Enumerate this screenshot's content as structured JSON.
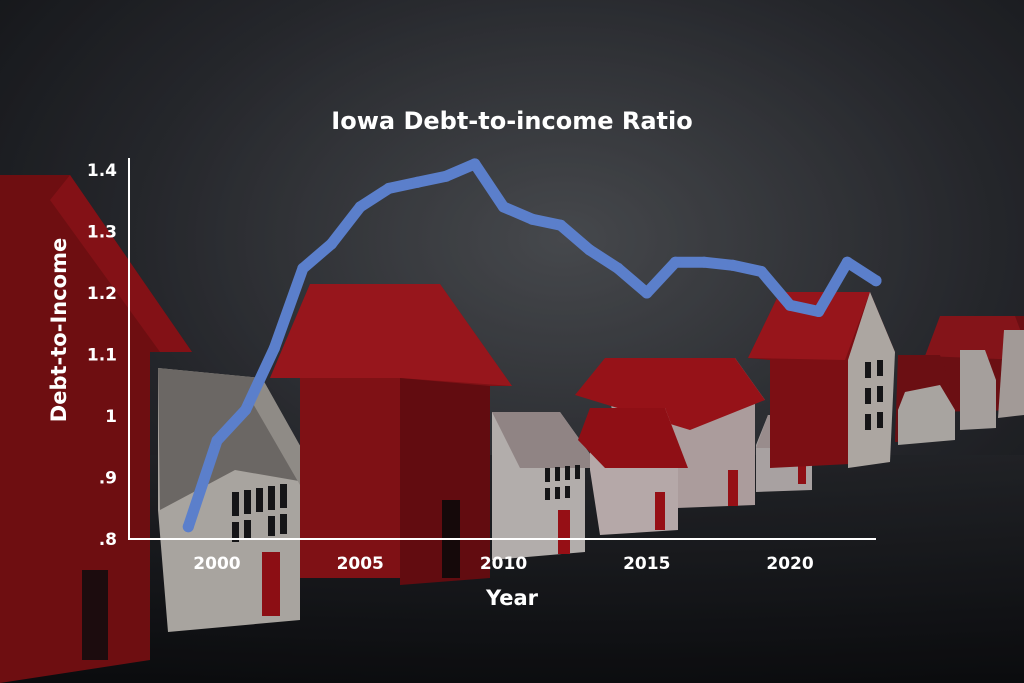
{
  "chart_data": {
    "type": "line",
    "title": "Iowa Debt-to-income Ratio",
    "xlabel": "Year",
    "ylabel": "Debt-to-Income",
    "xlim": [
      1997,
      2023
    ],
    "ylim": [
      0.8,
      1.4
    ],
    "x_ticks": [
      2000,
      2005,
      2010,
      2015,
      2020
    ],
    "y_ticks": [
      0.8,
      0.9,
      1.0,
      1.1,
      1.2,
      1.3,
      1.4
    ],
    "y_tick_labels": [
      ".8",
      ".9",
      "1",
      "1.1",
      "1.2",
      "1.3",
      "1.4"
    ],
    "grid": false,
    "series": [
      {
        "color": "#5b7fcb",
        "x": [
          1999,
          2000,
          2001,
          2002,
          2003,
          2004,
          2005,
          2006,
          2007,
          2008,
          2009,
          2010,
          2011,
          2012,
          2013,
          2014,
          2015,
          2016,
          2017,
          2018,
          2019,
          2020,
          2021,
          2022,
          2023
        ],
        "y": [
          0.82,
          0.96,
          1.01,
          1.11,
          1.24,
          1.28,
          1.34,
          1.37,
          1.38,
          1.39,
          1.41,
          1.34,
          1.32,
          1.31,
          1.27,
          1.24,
          1.2,
          1.25,
          1.25,
          1.245,
          1.235,
          1.18,
          1.17,
          1.25,
          1.22
        ]
      }
    ]
  }
}
